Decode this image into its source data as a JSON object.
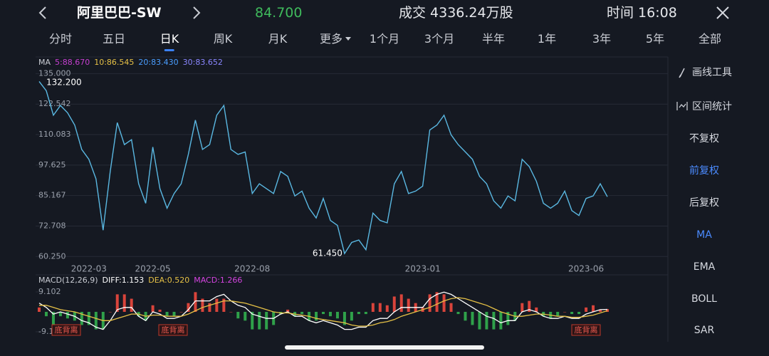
{
  "header": {
    "title": "阿里巴巴-SW",
    "price": "84.700",
    "volume": "成交 4336.24万股",
    "time": "时间 16:08"
  },
  "tabs": [
    "分时",
    "五日",
    "日K",
    "周K",
    "月K",
    "更多",
    "1个月",
    "3个月",
    "半年",
    "1年",
    "3年",
    "5年",
    "全部"
  ],
  "side_menu": [
    "画线工具",
    "区间统计",
    "不复权",
    "前复权",
    "后复权",
    "MA",
    "EMA",
    "BOLL",
    "SAR"
  ],
  "chart_data": [
    {
      "type": "line",
      "legend_label": "MA",
      "legend_items": [
        {
          "text": "5:88.670",
          "color": "#c63fd0"
        },
        {
          "text": "10:86.545",
          "color": "#e6c146"
        },
        {
          "text": "20:83.430",
          "color": "#4a9eff"
        },
        {
          "text": "30:83.652",
          "color": "#8a86ff"
        }
      ],
      "categories": [
        null,
        null,
        null,
        null,
        null,
        null,
        null,
        "2022-03",
        null,
        null,
        null,
        null,
        null,
        null,
        null,
        null,
        "2022-05",
        null,
        null,
        null,
        null,
        null,
        null,
        null,
        null,
        null,
        null,
        null,
        null,
        null,
        "2022-08",
        null,
        null,
        null,
        null,
        null,
        null,
        null,
        null,
        null,
        null,
        null,
        null,
        null,
        null,
        null,
        null,
        null,
        null,
        null,
        null,
        null,
        null,
        null,
        "2023-01",
        null,
        null,
        null,
        null,
        null,
        null,
        null,
        null,
        null,
        null,
        null,
        null,
        null,
        null,
        null,
        null,
        null,
        null,
        null,
        null,
        null,
        null,
        "2023-06",
        null,
        null,
        null
      ],
      "values": [
        131.8,
        128,
        118,
        122,
        119,
        114,
        104,
        100,
        92,
        71,
        95,
        115,
        106,
        108,
        90,
        82,
        105,
        88,
        80,
        86,
        90,
        102,
        116,
        104,
        106,
        118,
        122,
        104,
        102,
        103,
        86,
        90,
        88,
        86,
        95,
        93,
        85,
        87,
        80,
        76,
        84,
        75,
        73,
        61.45,
        66,
        67,
        63,
        78,
        75,
        74,
        90,
        95,
        86,
        87,
        89,
        112,
        114,
        118,
        110,
        106,
        103,
        100,
        93,
        90,
        83,
        80,
        85,
        83,
        100,
        97,
        91,
        82,
        80,
        82,
        87,
        79,
        77,
        84,
        85,
        90,
        84.7
      ],
      "color": "#5ab8e2",
      "high": {
        "value": 132.2,
        "label": "132.200"
      },
      "low": {
        "value": 61.45,
        "label": "61.450"
      },
      "ylim": [
        58,
        136
      ],
      "yticks": [
        {
          "value": 135,
          "label": "135.000"
        },
        122.542,
        110.083,
        97.625,
        85.167,
        72.708,
        {
          "value": 60.25,
          "label": "60.250"
        }
      ],
      "grid": true
    },
    {
      "type": "macd",
      "legend_label": "MACD(12,26,9)",
      "legend_items": [
        {
          "text": "DIFF:1.153",
          "color": "#ffffff"
        },
        {
          "text": "DEA:0.520",
          "color": "#e6c146"
        },
        {
          "text": "MACD:1.266",
          "color": "#d444e0"
        }
      ],
      "diff": [
        4,
        2,
        -1,
        0,
        -1,
        -2,
        -4,
        -5,
        -7,
        -8,
        -4,
        1,
        2,
        2,
        -2,
        -4,
        0,
        -1,
        -3,
        -3,
        -2,
        1,
        5,
        5,
        5,
        7,
        8,
        5,
        3,
        2,
        -1,
        -2,
        -3,
        -3,
        -1,
        0,
        -2,
        -2,
        -4,
        -5,
        -4,
        -5,
        -6,
        -8,
        -8,
        -7,
        -7,
        -4,
        -3,
        -3,
        0,
        2,
        2,
        2,
        2,
        6,
        8,
        9,
        8,
        6,
        4,
        2,
        0,
        -2,
        -3,
        -5,
        -4,
        -4,
        0,
        1,
        0,
        -2,
        -3,
        -3,
        -2,
        -3,
        -3,
        -1,
        0,
        1,
        1.153
      ],
      "dea": [
        3,
        3,
        2,
        1,
        0.5,
        0,
        -1,
        -2,
        -3,
        -4,
        -4,
        -3,
        -2,
        -1,
        -1,
        -2,
        -1.5,
        -1.5,
        -2,
        -2,
        -2,
        -1,
        0.5,
        2,
        3,
        4,
        5,
        5,
        4.5,
        4,
        3,
        2,
        1,
        0,
        -0.5,
        -0.5,
        -1,
        -1.5,
        -2,
        -3,
        -3.5,
        -4,
        -4.5,
        -5,
        -6,
        -6.5,
        -6.5,
        -6,
        -5,
        -4.5,
        -3.5,
        -2,
        -1,
        0,
        1,
        2,
        3.5,
        5,
        6,
        6.5,
        6,
        5,
        4,
        3,
        1.5,
        0,
        -1,
        -2,
        -2,
        -1.5,
        -1,
        -1,
        -1.5,
        -2,
        -2,
        -2.5,
        -2.5,
        -2,
        -1.5,
        -0.5,
        0.52
      ],
      "values": [
        2,
        -2,
        -6,
        -2,
        -3,
        -4,
        -6,
        -6,
        -8,
        -8,
        0,
        8,
        8,
        6,
        -2,
        -4,
        3,
        1,
        -2,
        -2,
        0,
        4,
        9,
        6,
        4,
        6,
        6,
        0,
        -3,
        -4,
        -8,
        -8,
        -8,
        -6,
        -1,
        1,
        -2,
        -1,
        -4,
        -4,
        -1,
        -2,
        -3,
        -6,
        -4,
        -1,
        -1,
        4,
        4,
        3,
        7,
        8,
        6,
        4,
        2,
        8,
        9,
        8,
        4,
        -1,
        -4,
        -6,
        -8,
        -8,
        -8,
        -8,
        -6,
        -4,
        4,
        5,
        2,
        -2,
        -3,
        -2,
        0,
        -1,
        -1,
        2,
        3,
        1,
        1.266
      ],
      "diff_color": "#ffffff",
      "dea_color": "#e6c146",
      "up_color": "#d9443b",
      "down_color": "#2fa14a",
      "ylim": [
        -9.102,
        9.102
      ],
      "yticks": [
        9.102,
        -9.102
      ],
      "divergence_labels": [
        "底背离",
        "底背离",
        "底背离"
      ]
    }
  ]
}
